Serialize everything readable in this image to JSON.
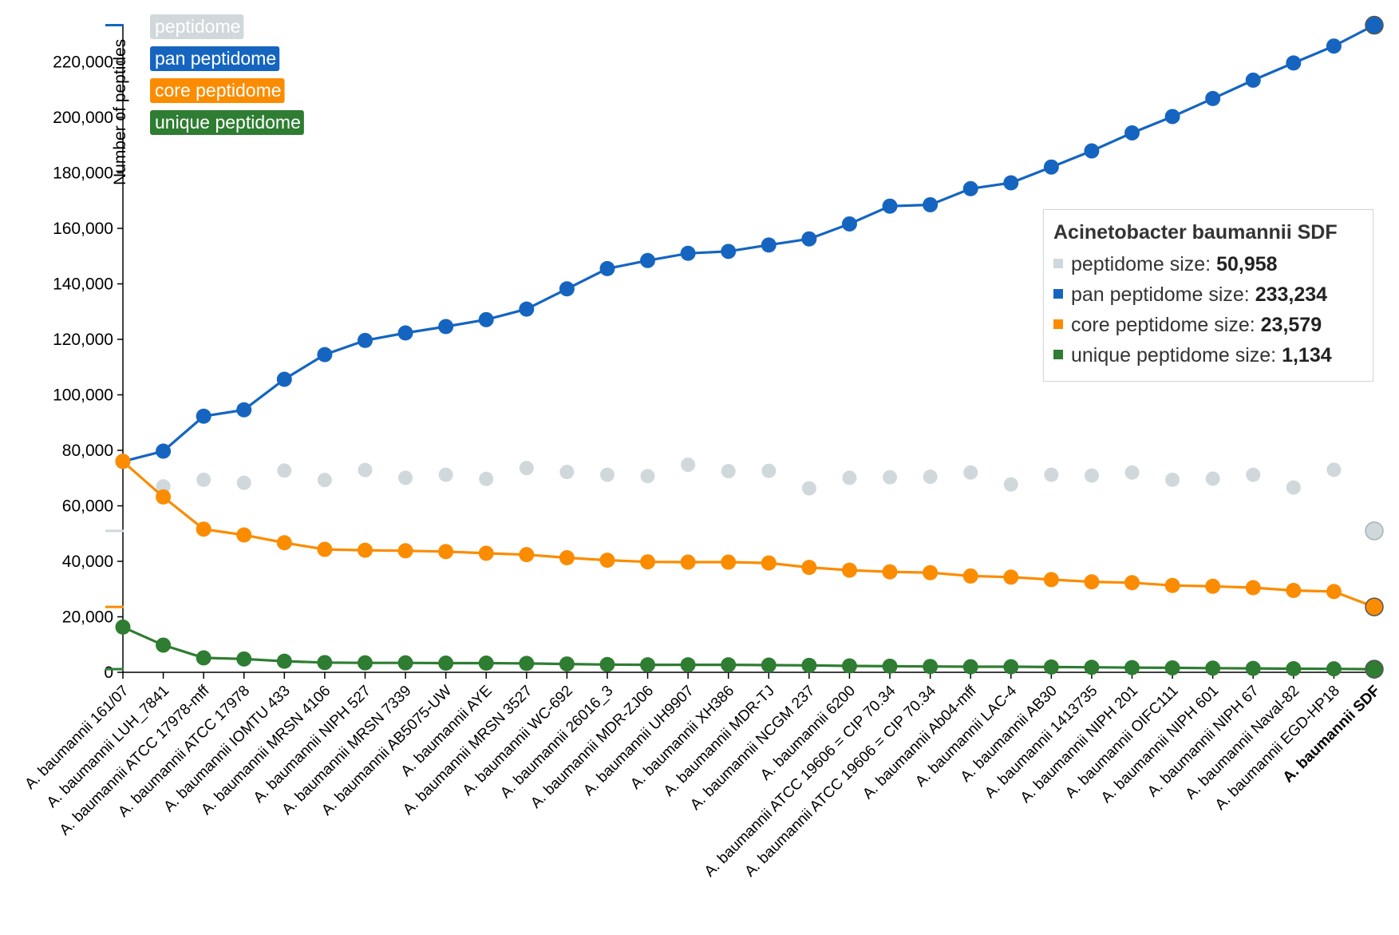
{
  "chart_data": {
    "type": "line",
    "ylabel": "Number of peptides",
    "ylim": [
      0,
      240000
    ],
    "yticks": [
      0,
      20000,
      40000,
      60000,
      80000,
      100000,
      120000,
      140000,
      160000,
      180000,
      200000,
      220000
    ],
    "ytick_labels": [
      "0",
      "20,000",
      "40,000",
      "60,000",
      "80,000",
      "100,000",
      "120,000",
      "140,000",
      "160,000",
      "180,000",
      "200,000",
      "220,000"
    ],
    "categories": [
      "A. baumannii 161/07",
      "A. baumannii LUH_7841",
      "A. baumannii ATCC 17978-mff",
      "A. baumannii ATCC 17978",
      "A. baumannii IOMTU 433",
      "A. baumannii MRSN 4106",
      "A. baumannii NIPH 527",
      "A. baumannii MRSN 7339",
      "A. baumannii AB5075-UW",
      "A. baumannii AYE",
      "A. baumannii MRSN 3527",
      "A. baumannii WC-692",
      "A. baumannii 26016_3",
      "A. baumannii MDR-ZJ06",
      "A. baumannii UH9907",
      "A. baumannii XH386",
      "A. baumannii MDR-TJ",
      "A. baumannii NCGM 237",
      "A. baumannii 6200",
      "A. baumannii ATCC 19606 = CIP 70.34",
      "A. baumannii ATCC 19606 = CIP 70.34",
      "A. baumannii Ab04-mff",
      "A. baumannii LAC-4",
      "A. baumannii AB30",
      "A. baumannii 1413735",
      "A. baumannii NIPH 201",
      "A. baumannii OIFC111",
      "A. baumannii NIPH 601",
      "A. baumannii NIPH 67",
      "A. baumannii Naval-82",
      "A. baumannii EGD-HP18",
      "A. baumannii SDF"
    ],
    "highlight_category": "A. baumannii SDF",
    "series": [
      {
        "name": "peptidome",
        "color": "#d0d8dc",
        "style": "points",
        "values": [
          76000,
          67000,
          69400,
          68300,
          72700,
          69300,
          72900,
          70100,
          71200,
          69700,
          73600,
          72200,
          71200,
          70700,
          74800,
          72500,
          72600,
          66300,
          70100,
          70300,
          70500,
          72000,
          67700,
          71200,
          70900,
          72000,
          69400,
          69800,
          71200,
          66600,
          73000,
          50958
        ]
      },
      {
        "name": "pan peptidome",
        "color": "#1565c0",
        "style": "line",
        "values": [
          76000,
          79700,
          92300,
          94600,
          105600,
          114500,
          119600,
          122300,
          124600,
          127100,
          130900,
          138200,
          145500,
          148400,
          151000,
          151700,
          154000,
          156200,
          161600,
          168000,
          168500,
          174300,
          176400,
          182100,
          187900,
          194400,
          200300,
          206800,
          213400,
          219600,
          225700,
          233234
        ]
      },
      {
        "name": "core peptidome",
        "color": "#fb8c00",
        "style": "line",
        "values": [
          76000,
          63200,
          51600,
          49500,
          46700,
          44300,
          44000,
          43800,
          43500,
          42900,
          42400,
          41300,
          40400,
          39800,
          39700,
          39700,
          39400,
          37800,
          36800,
          36200,
          35900,
          34700,
          34300,
          33400,
          32600,
          32300,
          31300,
          31000,
          30500,
          29500,
          29100,
          23579
        ]
      },
      {
        "name": "unique peptidome",
        "color": "#2e7d32",
        "style": "line",
        "values": [
          16300,
          9800,
          5200,
          4800,
          4000,
          3500,
          3400,
          3400,
          3300,
          3300,
          3200,
          3000,
          2800,
          2700,
          2700,
          2700,
          2600,
          2500,
          2300,
          2200,
          2100,
          2000,
          2000,
          1900,
          1800,
          1700,
          1600,
          1500,
          1400,
          1300,
          1250,
          1134
        ]
      }
    ],
    "axis_markers": [
      {
        "value": 233234,
        "color": "#1565c0"
      },
      {
        "value": 50958,
        "color": "#d0d8dc"
      },
      {
        "value": 23579,
        "color": "#fb8c00"
      },
      {
        "value": 1134,
        "color": "#2e7d32"
      }
    ],
    "legend": {
      "placement": "top-left",
      "items": [
        {
          "label": "peptidome",
          "color": "#d0d8dc"
        },
        {
          "label": "pan peptidome",
          "color": "#1565c0"
        },
        {
          "label": "core peptidome",
          "color": "#fb8c00"
        },
        {
          "label": "unique peptidome",
          "color": "#2e7d32"
        }
      ]
    },
    "info_box": {
      "title": "Acinetobacter baumannii SDF",
      "rows": [
        {
          "label": "peptidome size:",
          "value": "50,958",
          "color": "#d0d8dc"
        },
        {
          "label": "pan peptidome size:",
          "value": "233,234",
          "color": "#1565c0"
        },
        {
          "label": "core peptidome size:",
          "value": "23,579",
          "color": "#fb8c00"
        },
        {
          "label": "unique peptidome size:",
          "value": "1,134",
          "color": "#2e7d32"
        }
      ]
    }
  }
}
